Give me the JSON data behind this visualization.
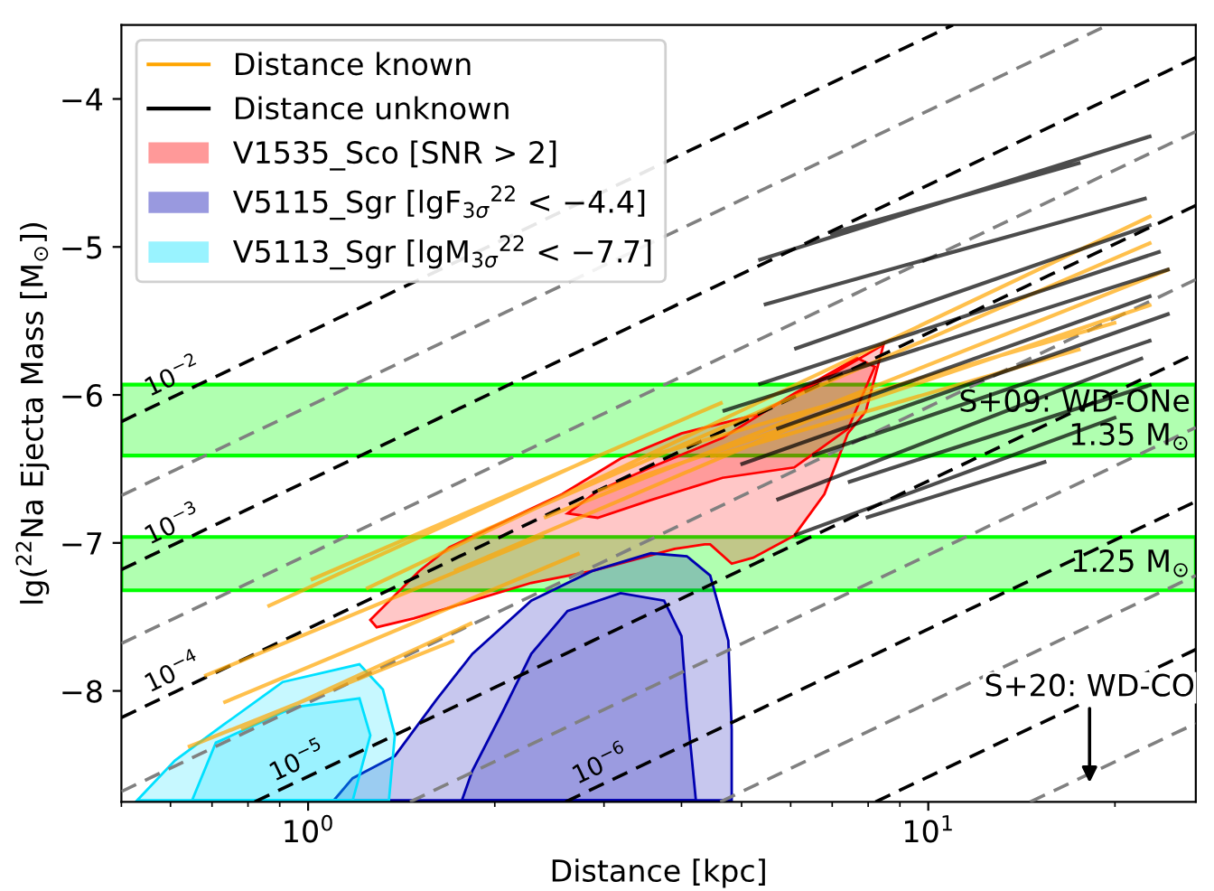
{
  "chart_data": {
    "type": "line",
    "xlabel": "Distance [kpc]",
    "ylabel": "lg($^{22}$Na Ejecta Mass [M$_{⊙}$])",
    "log": "x",
    "xlim": [
      0.5,
      27
    ],
    "ylim": [
      -8.75,
      -3.5
    ],
    "grid": false,
    "legend": "top left",
    "xticks": [
      {
        "value": 1,
        "label": "10$^{0}$"
      },
      {
        "value": 10,
        "label": "10$^{1}$"
      }
    ],
    "yticks": [
      {
        "value": -8,
        "label": "−8"
      },
      {
        "value": -7,
        "label": "−7"
      },
      {
        "value": -6,
        "label": "−6"
      },
      {
        "value": -5,
        "label": "−5"
      },
      {
        "value": -4,
        "label": "−4"
      }
    ],
    "bands": [
      {
        "axis": "y",
        "from": -6.41,
        "to": -5.93,
        "label": "S+09: WD-ONe\n1.35 M$_{⊙}$",
        "color": "#b0ffb0"
      },
      {
        "axis": "y",
        "from": -7.32,
        "to": -6.96,
        "label": "1.25 M$_{⊙}$",
        "color": "#b0ffb0"
      }
    ],
    "annotations": [
      {
        "text": "10$^{−2}$",
        "x": 0.56,
        "y": -6.08
      },
      {
        "text": "10$^{−3}$",
        "x": 0.56,
        "y": -7.08
      },
      {
        "text": "10$^{−4}$",
        "x": 0.56,
        "y": -8.08
      },
      {
        "text": "10$^{−5}$",
        "x": 0.89,
        "y": -8.68
      },
      {
        "text": "10$^{−6}$",
        "x": 2.74,
        "y": -8.7
      },
      {
        "text": "S+20: WD-CO",
        "x": 18.2,
        "y": -8.62
      }
    ],
    "series": [
      {
        "type": "line",
        "line_style": "dashed",
        "color": "#000000",
        "x": [
          0.5,
          10.96
        ],
        "values": [
          -6.18,
          -3.5
        ]
      },
      {
        "type": "line",
        "line_style": "dashed",
        "color": "#808080",
        "x": [
          0.5,
          19.5
        ],
        "values": [
          -6.68,
          -3.5
        ]
      },
      {
        "type": "line",
        "line_style": "dashed",
        "color": "#000000",
        "x": [
          0.5,
          27
        ],
        "values": [
          -7.18,
          -3.72
        ]
      },
      {
        "type": "line",
        "line_style": "dashed",
        "color": "#808080",
        "x": [
          0.5,
          27
        ],
        "values": [
          -7.68,
          -4.22
        ]
      },
      {
        "type": "line",
        "line_style": "dashed",
        "color": "#000000",
        "x": [
          0.5,
          27
        ],
        "values": [
          -8.18,
          -4.72
        ]
      },
      {
        "type": "line",
        "line_style": "dashed",
        "color": "#808080",
        "x": [
          0.5,
          27
        ],
        "values": [
          -8.68,
          -5.22
        ]
      },
      {
        "type": "line",
        "line_style": "dashed",
        "color": "#000000",
        "x": [
          0.82,
          27
        ],
        "values": [
          -8.75,
          -5.72
        ]
      },
      {
        "type": "line",
        "line_style": "dashed",
        "color": "#808080",
        "x": [
          1.46,
          27
        ],
        "values": [
          -8.75,
          -6.22
        ]
      },
      {
        "type": "line",
        "line_style": "dashed",
        "color": "#000000",
        "x": [
          2.6,
          27
        ],
        "values": [
          -8.75,
          -6.72
        ]
      },
      {
        "type": "line",
        "line_style": "dashed",
        "color": "#808080",
        "x": [
          4.62,
          27
        ],
        "values": [
          -8.75,
          -7.22
        ]
      },
      {
        "type": "line",
        "line_style": "dashed",
        "color": "#000000",
        "x": [
          8.22,
          27
        ],
        "values": [
          -8.75,
          -7.72
        ]
      },
      {
        "type": "line",
        "line_style": "dashed",
        "color": "#808080",
        "x": [
          14.6,
          27
        ],
        "values": [
          -8.75,
          -8.22
        ]
      },
      {
        "type": "area",
        "name": "V1535_Sco [SNR > 2]",
        "color": "#ff0000",
        "x": [
          1.26,
          1.51,
          1.69,
          2.06,
          2.57,
          3.19,
          4.0,
          5.32,
          6.94,
          8.47,
          7.93,
          7.42,
          6.8,
          6.08,
          5.22,
          4.82,
          4.45,
          4.36,
          3.9,
          2.87,
          2.29,
          1.84,
          1.48,
          1.29
        ],
        "values": [
          -7.52,
          -7.19,
          -7.03,
          -6.86,
          -6.67,
          -6.43,
          -6.26,
          -6.13,
          -5.87,
          -5.66,
          -6.11,
          -6.26,
          -6.67,
          -6.95,
          -7.1,
          -7.14,
          -7.01,
          -7.01,
          -7.04,
          -7.19,
          -7.27,
          -7.39,
          -7.51,
          -7.57
        ]
      },
      {
        "type": "area",
        "color": "#ff0000",
        "x": [
          2.62,
          2.93,
          3.57,
          4.66,
          6.08,
          7.67,
          8.2,
          7.42,
          6.08,
          4.66,
          3.57,
          2.93
        ],
        "values": [
          -6.8,
          -6.65,
          -6.49,
          -6.29,
          -5.99,
          -5.75,
          -5.81,
          -6.23,
          -6.49,
          -6.56,
          -6.71,
          -6.83
        ]
      },
      {
        "type": "area",
        "name": "V5115_Sgr [lgF$_{3σ}$$^{22}$ < −4.4]",
        "color": "#0000b0",
        "x": [
          1.1,
          1.18,
          1.38,
          1.61,
          1.84,
          2.29,
          2.87,
          3.57,
          4.08,
          4.45,
          4.76,
          4.82,
          4.82
        ],
        "values": [
          -8.74,
          -8.59,
          -8.44,
          -8.06,
          -7.75,
          -7.39,
          -7.19,
          -7.07,
          -7.09,
          -7.22,
          -7.66,
          -8.26,
          -8.74
        ]
      },
      {
        "type": "area",
        "color": "#0000b0",
        "x": [
          1.77,
          1.84,
          2.06,
          2.29,
          2.62,
          3.19,
          3.75,
          4.0,
          4.08,
          4.22
        ],
        "values": [
          -8.74,
          -8.54,
          -8.14,
          -7.75,
          -7.46,
          -7.34,
          -7.39,
          -7.63,
          -8.11,
          -8.74
        ]
      },
      {
        "type": "area",
        "name": "V5113_Sgr [lgM$_{3σ}$$^{22}$ < −7.7]",
        "color": "#00e0ff",
        "x": [
          0.53,
          0.61,
          0.73,
          0.91,
          1.21,
          1.32,
          1.38,
          1.35
        ],
        "values": [
          -8.74,
          -8.47,
          -8.23,
          -7.94,
          -7.82,
          -7.99,
          -8.3,
          -8.74
        ]
      },
      {
        "type": "area",
        "color": "#00e0ff",
        "x": [
          0.65,
          0.71,
          0.95,
          1.21,
          1.26,
          1.18
        ],
        "values": [
          -8.74,
          -8.35,
          -8.11,
          -8.05,
          -8.3,
          -8.74
        ]
      },
      {
        "name": "Distance known",
        "color": "#ffa500",
        "line_style": "solid",
        "x": [
          0.86,
          2.93,
          null,
          1.01,
          4.66,
          null,
          0.68,
          2.4,
          null,
          0.73,
          2.74,
          null,
          0.78,
          1.84,
          null,
          0.64,
          1.72,
          null,
          1.24,
          22.9,
          null,
          1.84,
          22.9,
          null,
          2.4,
          24.5,
          null,
          2.93,
          22.9,
          null,
          3.57,
          20.1,
          null,
          1.72,
          6.94,
          null,
          4.45,
          17.6
        ],
        "values": [
          -7.43,
          -6.41,
          null,
          -7.25,
          -6.05,
          null,
          -7.9,
          -6.95,
          null,
          -8.08,
          -7.07,
          null,
          -8.26,
          -7.54,
          null,
          -8.38,
          -7.66,
          null,
          -7.31,
          -4.79,
          null,
          -6.95,
          -4.97,
          null,
          -6.83,
          -5.15,
          null,
          -6.65,
          -5.39,
          null,
          -6.41,
          -5.51,
          null,
          -7.19,
          -6.11,
          null,
          -6.42,
          -5.69
        ]
      },
      {
        "name": "Distance unknown",
        "color": "#000000",
        "line_style": "solid",
        "x": [
          5.43,
          22.5,
          null,
          6.08,
          22.9,
          null,
          5.32,
          23.7,
          null,
          4.66,
          24.5,
          null,
          5.69,
          22.9,
          null,
          4.98,
          24.5,
          null,
          6.5,
          22.9,
          null,
          5.69,
          22.2,
          null,
          7.42,
          22.9,
          null,
          6.08,
          20.1,
          null,
          7.93,
          15.5,
          null,
          5.32,
          22.9,
          null,
          6.94,
          17.6
        ],
        "values": [
          -5.39,
          -4.67,
          null,
          -5.69,
          -4.85,
          null,
          -5.93,
          -5.03,
          null,
          -6.11,
          -5.15,
          null,
          -6.23,
          -5.33,
          null,
          -6.47,
          -5.45,
          null,
          -6.41,
          -5.63,
          null,
          -6.71,
          -5.75,
          null,
          -6.59,
          -5.93,
          null,
          -6.95,
          -6.15,
          null,
          -6.83,
          -6.45,
          null,
          -5.09,
          -4.25,
          null,
          -4.91,
          -4.43
        ]
      }
    ]
  }
}
